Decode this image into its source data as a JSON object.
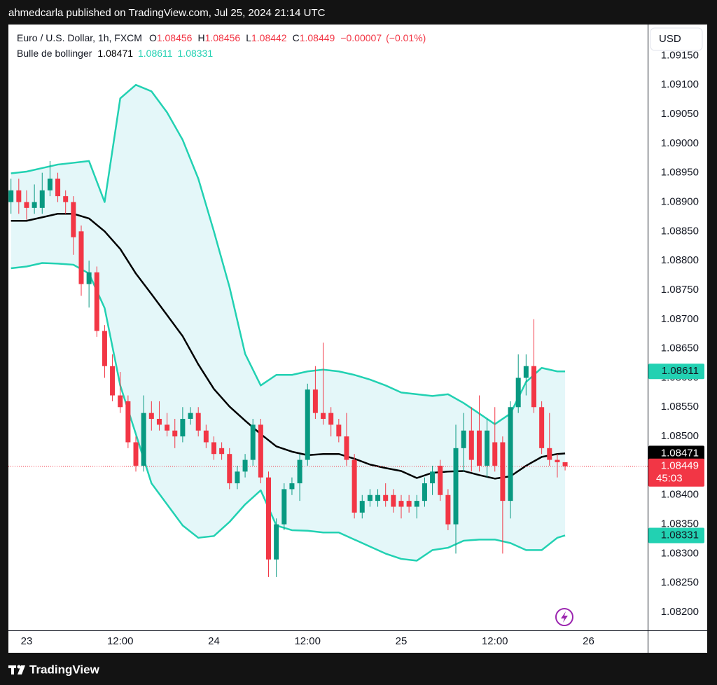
{
  "publish_note": "ahmedcarla published on TradingView.com, Jul 25, 2024 21:14 UTC",
  "brand": "TradingView",
  "currency": "USD",
  "countdown": "45:03",
  "chart_data": {
    "type": "candlestick",
    "title": "Euro / U.S. Dollar, 1h, FXCM",
    "ohlc_prefixes": [
      "O",
      "H",
      "L",
      "C"
    ],
    "change": {
      "value": -7e-05,
      "label": "−0.00007"
    },
    "change_pct": {
      "value": -0.01,
      "label": "(−0.01%)"
    },
    "up_color": "#089981",
    "down_color": "#f23645",
    "xlim": [
      -2.33,
      79.58
    ],
    "xticks": [
      {
        "value": 0,
        "label": "23"
      },
      {
        "value": 12,
        "label": "12:00"
      },
      {
        "value": 24,
        "label": "24"
      },
      {
        "value": 36,
        "label": "12:00"
      },
      {
        "value": 48,
        "label": "25"
      },
      {
        "value": 60,
        "label": "12:00"
      },
      {
        "value": 72,
        "label": "26"
      }
    ],
    "ylim": [
      1.08169,
      1.09203
    ],
    "yticks": [
      {
        "value": 1.082,
        "label": "1.08200"
      },
      {
        "value": 1.0825,
        "label": "1.08250"
      },
      {
        "value": 1.083,
        "label": "1.08300"
      },
      {
        "value": 1.0835,
        "label": "1.08350"
      },
      {
        "value": 1.084,
        "label": "1.08400"
      },
      {
        "value": 1.0845,
        "label": "1.08450"
      },
      {
        "value": 1.085,
        "label": "1.08500"
      },
      {
        "value": 1.0855,
        "label": "1.08550"
      },
      {
        "value": 1.086,
        "label": "1.08600"
      },
      {
        "value": 1.0865,
        "label": "1.08650"
      },
      {
        "value": 1.087,
        "label": "1.08700"
      },
      {
        "value": 1.0875,
        "label": "1.08750"
      },
      {
        "value": 1.088,
        "label": "1.08800"
      },
      {
        "value": 1.0885,
        "label": "1.08850"
      },
      {
        "value": 1.089,
        "label": "1.08900"
      },
      {
        "value": 1.0895,
        "label": "1.08950"
      },
      {
        "value": 1.09,
        "label": "1.09000"
      },
      {
        "value": 1.0905,
        "label": "1.09050"
      },
      {
        "value": 1.091,
        "label": "1.09100"
      },
      {
        "value": 1.0915,
        "label": "1.09150"
      }
    ],
    "x": [
      -2,
      -1,
      0,
      1,
      2,
      3,
      4,
      5,
      6,
      7,
      8,
      9,
      10,
      11,
      12,
      13,
      14,
      15,
      16,
      17,
      18,
      19,
      20,
      21,
      22,
      23,
      24,
      25,
      26,
      27,
      28,
      29,
      30,
      31,
      32,
      33,
      34,
      35,
      36,
      37,
      38,
      39,
      40,
      41,
      42,
      43,
      44,
      45,
      46,
      47,
      48,
      49,
      50,
      51,
      52,
      53,
      54,
      55,
      56,
      57,
      58,
      59,
      60,
      61,
      62,
      63,
      64,
      65,
      66,
      67,
      68,
      69
    ],
    "open": [
      1.089,
      1.0892,
      1.089,
      1.0889,
      1.0889,
      1.0892,
      1.0894,
      1.0891,
      1.089,
      1.0885,
      1.0876,
      1.0878,
      1.0868,
      1.0862,
      1.0857,
      1.0856,
      1.0849,
      1.0845,
      1.0854,
      1.0853,
      1.0852,
      1.0851,
      1.085,
      1.0853,
      1.0854,
      1.0851,
      1.0849,
      1.0848,
      1.0847,
      1.0842,
      1.0844,
      1.0846,
      1.0852,
      1.0843,
      1.0829,
      1.0835,
      1.0841,
      1.0842,
      1.0846,
      1.0858,
      1.0854,
      1.0854,
      1.0852,
      1.085,
      1.0846,
      1.0837,
      1.0839,
      1.0839,
      1.084,
      1.084,
      1.0839,
      1.0839,
      1.0838,
      1.0839,
      1.0842,
      1.0845,
      1.084,
      1.0835,
      1.0848,
      1.0851,
      1.0851,
      1.0845,
      1.0849,
      1.0849,
      1.0839,
      1.0855,
      1.086,
      1.0862,
      1.0855,
      1.0848,
      1.0846,
      1.08456
    ],
    "high": [
      1.0894,
      1.0894,
      1.0892,
      1.0893,
      1.0895,
      1.0897,
      1.0895,
      1.0892,
      1.0891,
      1.0886,
      1.088,
      1.0879,
      1.0869,
      1.0864,
      1.0861,
      1.0857,
      1.085,
      1.0857,
      1.0856,
      1.0856,
      1.0854,
      1.0853,
      1.0855,
      1.0855,
      1.0855,
      1.0852,
      1.085,
      1.0849,
      1.0848,
      1.0845,
      1.0847,
      1.0853,
      1.0853,
      1.0844,
      1.0836,
      1.0842,
      1.0843,
      1.0847,
      1.0859,
      1.0862,
      1.0866,
      1.0855,
      1.0853,
      1.0854,
      1.0847,
      1.084,
      1.0841,
      1.0841,
      1.0842,
      1.0841,
      1.084,
      1.084,
      1.084,
      1.0843,
      1.0845,
      1.0846,
      1.0841,
      1.0852,
      1.0854,
      1.0855,
      1.0857,
      1.0853,
      1.0855,
      1.085,
      1.0856,
      1.0864,
      1.0864,
      1.087,
      1.0856,
      1.0854,
      1.0847,
      1.08456
    ],
    "low": [
      1.0888,
      1.0888,
      1.0887,
      1.0888,
      1.0888,
      1.0891,
      1.089,
      1.0888,
      1.0881,
      1.0874,
      1.0872,
      1.0867,
      1.086,
      1.0856,
      1.0854,
      1.0848,
      1.0844,
      1.0844,
      1.0851,
      1.0851,
      1.085,
      1.0848,
      1.0849,
      1.0852,
      1.085,
      1.0848,
      1.0846,
      1.0846,
      1.0841,
      1.0841,
      1.0843,
      1.0845,
      1.0842,
      1.0826,
      1.0826,
      1.0834,
      1.084,
      1.0839,
      1.0845,
      1.0853,
      1.0852,
      1.085,
      1.0849,
      1.0845,
      1.0836,
      1.0836,
      1.0838,
      1.0838,
      1.0838,
      1.0837,
      1.0836,
      1.0837,
      1.0836,
      1.0838,
      1.084,
      1.0839,
      1.0834,
      1.083,
      1.0844,
      1.0844,
      1.0844,
      1.0843,
      1.0844,
      1.083,
      1.0836,
      1.0854,
      1.0857,
      1.0854,
      1.0847,
      1.0845,
      1.0843,
      1.08442
    ],
    "close": [
      1.0892,
      1.089,
      1.0889,
      1.089,
      1.0892,
      1.0894,
      1.0891,
      1.089,
      1.0884,
      1.0876,
      1.0878,
      1.0868,
      1.0862,
      1.0857,
      1.0855,
      1.0849,
      1.0845,
      1.0854,
      1.0853,
      1.0852,
      1.0851,
      1.085,
      1.0853,
      1.0854,
      1.0851,
      1.0849,
      1.0847,
      1.0847,
      1.0842,
      1.0844,
      1.0846,
      1.0852,
      1.0843,
      1.0829,
      1.0835,
      1.0841,
      1.0842,
      1.0846,
      1.0858,
      1.0854,
      1.0853,
      1.0852,
      1.085,
      1.0846,
      1.0837,
      1.0839,
      1.084,
      1.084,
      1.0839,
      1.0838,
      1.0838,
      1.0838,
      1.0839,
      1.0842,
      1.0844,
      1.084,
      1.0835,
      1.0848,
      1.0851,
      1.0846,
      1.0845,
      1.0851,
      1.0845,
      1.0839,
      1.0855,
      1.086,
      1.0862,
      1.0855,
      1.0848,
      1.0846,
      1.08456,
      1.08449
    ],
    "bands": {
      "name": "Bulle de bollinger",
      "color": "#22d1b2",
      "basis_color": "#000000",
      "fill": "#e4f7f9",
      "x": [
        -2,
        0,
        2,
        4,
        6,
        8,
        10,
        12,
        14,
        16,
        18,
        20,
        22,
        24,
        26,
        28,
        30,
        32,
        34,
        36,
        38,
        40,
        42,
        44,
        46,
        48,
        50,
        52,
        54,
        56,
        58,
        60,
        62,
        64,
        66,
        68,
        69
      ],
      "basis": [
        1.08868,
        1.08868,
        1.08874,
        1.0888,
        1.0888,
        1.08872,
        1.0885,
        1.0882,
        1.08778,
        1.08743,
        1.08707,
        1.08671,
        1.08623,
        1.08581,
        1.08551,
        1.08527,
        1.08504,
        1.08483,
        1.08474,
        1.08468,
        1.0847,
        1.0847,
        1.08462,
        1.08452,
        1.08446,
        1.08441,
        1.08429,
        1.08438,
        1.0844,
        1.08441,
        1.08434,
        1.08428,
        1.08432,
        1.0845,
        1.08465,
        1.0847,
        1.08471
      ],
      "upper": [
        1.08949,
        1.08952,
        1.08958,
        1.08964,
        1.08967,
        1.0897,
        1.089,
        1.09077,
        1.091,
        1.09089,
        1.09053,
        1.09006,
        1.0894,
        1.0885,
        1.08755,
        1.08641,
        1.08587,
        1.08605,
        1.08605,
        1.08611,
        1.08614,
        1.08611,
        1.08605,
        1.08597,
        1.08587,
        1.08575,
        1.08572,
        1.08569,
        1.08572,
        1.08557,
        1.08539,
        1.08521,
        1.08539,
        1.08593,
        1.08617,
        1.08611,
        1.08611
      ],
      "lower": [
        1.08787,
        1.0879,
        1.08796,
        1.08795,
        1.08793,
        1.08778,
        1.08719,
        1.08587,
        1.08504,
        1.0842,
        1.08384,
        1.08348,
        1.08327,
        1.0833,
        1.08354,
        1.08384,
        1.08408,
        1.08348,
        1.0834,
        1.08339,
        1.08336,
        1.08336,
        1.08324,
        1.08312,
        1.083,
        1.08291,
        1.08288,
        1.08306,
        1.0831,
        1.08322,
        1.08324,
        1.08324,
        1.08318,
        1.08306,
        1.08306,
        1.08327,
        1.08331
      ]
    }
  }
}
